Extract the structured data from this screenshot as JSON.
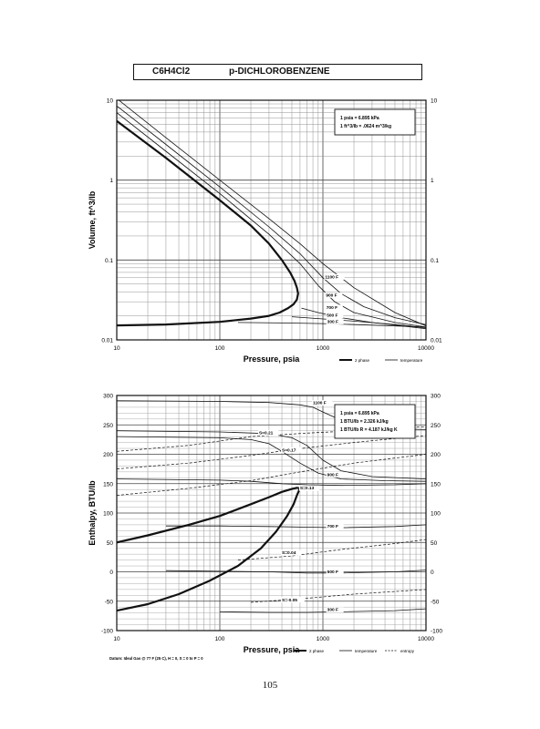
{
  "header": {
    "formula": "C6H4Cl2",
    "name": "p-DICHLOROBENZENE"
  },
  "page_number": "105",
  "chart_data": [
    {
      "type": "line",
      "xlabel": "Pressure, psia",
      "ylabel": "Volume, ft^3/lb",
      "x_scale": "log",
      "y_scale": "log",
      "xlim": [
        10,
        10000
      ],
      "ylim": [
        0.01,
        10
      ],
      "x_ticks": [
        "10",
        "100",
        "1000",
        "10000"
      ],
      "y_ticks": [
        "0.01",
        "0.1",
        "1",
        "10"
      ],
      "y_ticks_right": [
        "0.01",
        "0.1",
        "1",
        "10"
      ],
      "grid": true,
      "conversion_box": [
        "1 psia = 6.895 kPa",
        "1 ft^3/lb = .0624 m^3/kg"
      ],
      "legend": [
        "2 phase",
        "temperature"
      ],
      "series": [
        {
          "style": "two-phase",
          "x": [
            10,
            30,
            100,
            200,
            300,
            400,
            480,
            530,
            560,
            575,
            560,
            520,
            460,
            380,
            300,
            200,
            100,
            30,
            10
          ],
          "y": [
            5.5,
            1.9,
            0.56,
            0.27,
            0.16,
            0.1,
            0.07,
            0.055,
            0.045,
            0.038,
            0.032,
            0.028,
            0.025,
            0.022,
            0.02,
            0.0185,
            0.0168,
            0.0156,
            0.0152
          ]
        },
        {
          "name": "1100 F",
          "x": [
            10,
            30,
            100,
            300,
            600,
            1000,
            2000,
            5000,
            10000
          ],
          "y": [
            10.5,
            3.4,
            1.0,
            0.33,
            0.16,
            0.09,
            0.045,
            0.022,
            0.015
          ]
        },
        {
          "name": "900 F",
          "x": [
            10,
            30,
            100,
            300,
            600,
            1000,
            1500,
            2500,
            5000,
            10000
          ],
          "y": [
            8.5,
            2.8,
            0.82,
            0.26,
            0.12,
            0.06,
            0.038,
            0.026,
            0.019,
            0.0155
          ]
        },
        {
          "x": [
            10,
            30,
            100,
            300,
            600,
            900,
            1300,
            2000,
            5000,
            10000
          ],
          "y": [
            7.0,
            2.3,
            0.68,
            0.21,
            0.09,
            0.048,
            0.03,
            0.022,
            0.0165,
            0.0145
          ]
        },
        {
          "name": "700 F",
          "x": [
            620,
            900,
            1500,
            3000,
            10000
          ],
          "y": [
            0.025,
            0.022,
            0.019,
            0.0165,
            0.0138
          ]
        },
        {
          "name": "500 F",
          "x": [
            500,
            900,
            2000,
            5000,
            10000
          ],
          "y": [
            0.0195,
            0.0185,
            0.0172,
            0.0156,
            0.0142
          ]
        },
        {
          "name": "300 F",
          "x": [
            150,
            400,
            1000,
            3000,
            10000
          ],
          "y": [
            0.0165,
            0.0163,
            0.016,
            0.0153,
            0.0145
          ]
        }
      ],
      "labels": [
        {
          "text": "1100 F",
          "x": 1050,
          "y": 0.059
        },
        {
          "text": "900 F",
          "x": 1070,
          "y": 0.035
        },
        {
          "text": "700 F",
          "x": 1080,
          "y": 0.0245
        },
        {
          "text": "500 F",
          "x": 1090,
          "y": 0.0195
        },
        {
          "text": "300 F",
          "x": 1100,
          "y": 0.0163
        }
      ]
    },
    {
      "type": "line",
      "xlabel": "Pressure, psia",
      "ylabel": "Enthalpy, BTU/lb",
      "x_scale": "log",
      "xlim": [
        10,
        10000
      ],
      "ylim": [
        -100,
        300
      ],
      "x_ticks": [
        "10",
        "100",
        "1000",
        "10000"
      ],
      "y_ticks": [
        "-100",
        "-50",
        "0",
        "50",
        "100",
        "150",
        "200",
        "250",
        "300"
      ],
      "y_ticks_right": [
        "-100",
        "-50",
        "0",
        "50",
        "100",
        "150",
        "200",
        "250",
        "300"
      ],
      "grid": true,
      "conversion_box": [
        "1 psia = 6.895 kPa",
        "1 BTU/lb = 2.326 kJ/kg",
        "1 BTU/lb R = 4.187 kJ/kg K"
      ],
      "legend": [
        "2 phase",
        "temperature",
        "entropy"
      ],
      "footnote": "Datum: Ideal Gas @ 77 F (25 C), H = 0, S = 0 to P = 0",
      "series": [
        {
          "style": "two-phase",
          "x": [
            10,
            20,
            50,
            100,
            200,
            300,
            400,
            500,
            560,
            600,
            560,
            520,
            450,
            350,
            250,
            150,
            80,
            40,
            20,
            10
          ],
          "y": [
            50,
            62,
            80,
            95,
            115,
            127,
            136,
            141,
            143,
            142,
            130,
            115,
            95,
            68,
            40,
            10,
            -15,
            -38,
            -55,
            -66
          ]
        },
        {
          "name": "1100 F",
          "x": [
            10,
            100,
            300,
            600,
            800,
            1000,
            1500,
            2500,
            5000,
            10000
          ],
          "y": [
            291,
            290,
            288,
            284,
            280,
            272,
            258,
            248,
            243,
            242
          ]
        },
        {
          "x": [
            10,
            100,
            300,
            500,
            700,
            1000,
            1500,
            3000,
            10000
          ],
          "y": [
            240,
            238,
            235,
            228,
            215,
            190,
            172,
            162,
            158
          ]
        },
        {
          "name": "900 F",
          "x": [
            10,
            100,
            200,
            300,
            400,
            600,
            900,
            1500,
            4000,
            10000
          ],
          "y": [
            230,
            228,
            225,
            218,
            205,
            185,
            168,
            158,
            155,
            154
          ]
        },
        {
          "x": [
            10,
            100,
            200,
            400,
            700,
            1500,
            5000,
            10000
          ],
          "y": [
            158,
            156,
            154,
            150,
            148,
            147,
            148,
            150
          ]
        },
        {
          "name": "700 F",
          "x": [
            30,
            100,
            300,
            700,
            1500,
            5000,
            10000
          ],
          "y": [
            78,
            78,
            77,
            76,
            75,
            77,
            80
          ]
        },
        {
          "name": "500 F",
          "x": [
            30,
            100,
            300,
            700,
            1500,
            5000,
            10000
          ],
          "y": [
            2,
            1,
            0,
            -2,
            -2,
            0,
            3
          ]
        },
        {
          "name": "300 F",
          "x": [
            100,
            300,
            700,
            1500,
            5000,
            10000
          ],
          "y": [
            -68,
            -69,
            -69,
            -68,
            -66,
            -63
          ]
        },
        {
          "style": "entropy",
          "name": "S=0.21",
          "x": [
            10,
            50,
            200,
            700,
            2000,
            5000,
            10000
          ],
          "y": [
            205,
            215,
            230,
            236,
            240,
            244,
            247
          ]
        },
        {
          "style": "entropy",
          "name": "S=0.17",
          "x": [
            10,
            50,
            200,
            500,
            2000,
            10000
          ],
          "y": [
            175,
            185,
            198,
            208,
            220,
            232
          ]
        },
        {
          "style": "entropy",
          "name": "S=0.13",
          "x": [
            10,
            50,
            200,
            600,
            2000,
            10000
          ],
          "y": [
            130,
            142,
            155,
            170,
            185,
            200
          ]
        },
        {
          "style": "entropy",
          "name": "S=0.04",
          "x": [
            150,
            500,
            1500,
            5000,
            10000
          ],
          "y": [
            20,
            27,
            38,
            48,
            55
          ]
        },
        {
          "style": "entropy",
          "name": "S=-0.05",
          "x": [
            200,
            600,
            2000,
            10000
          ],
          "y": [
            -52,
            -46,
            -38,
            -30
          ]
        }
      ],
      "labels": [
        {
          "text": "1100 F",
          "x": 800,
          "y": 285
        },
        {
          "text": "S=0.21",
          "x": 240,
          "y": 234
        },
        {
          "text": "S=0.17",
          "x": 400,
          "y": 205
        },
        {
          "text": "900 F",
          "x": 1100,
          "y": 163
        },
        {
          "text": "S=0.13",
          "x": 600,
          "y": 140
        },
        {
          "text": "700 F",
          "x": 1100,
          "y": 75
        },
        {
          "text": "S=0.04",
          "x": 400,
          "y": 30
        },
        {
          "text": "500 F",
          "x": 1100,
          "y": -2
        },
        {
          "text": "S=-0.05",
          "x": 400,
          "y": -50
        },
        {
          "text": "300 F",
          "x": 1100,
          "y": -67
        }
      ]
    }
  ]
}
